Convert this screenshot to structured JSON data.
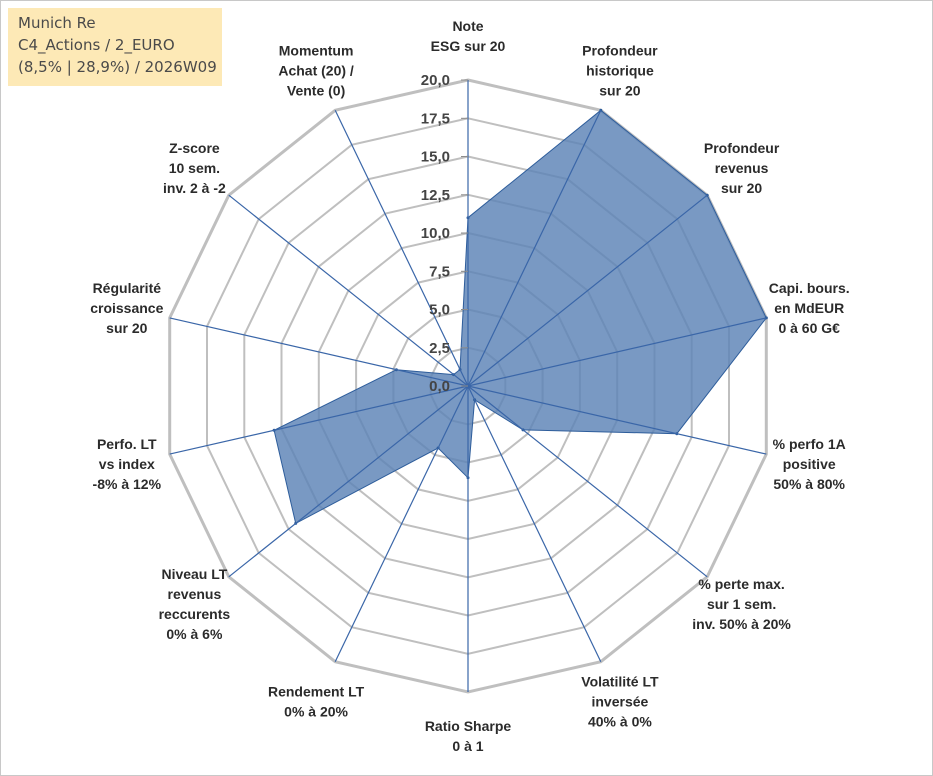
{
  "title_box": {
    "line1": "Munich Re",
    "line2": "C4_Actions / 2_EURO",
    "line3": "(8,5% | 28,9%) / 2026W09"
  },
  "chart_data": {
    "type": "radar",
    "r_range": [
      0,
      20
    ],
    "ticks": [
      "0,0",
      "2,5",
      "5,0",
      "7,5",
      "10,0",
      "12,5",
      "15,0",
      "17,5",
      "20,0"
    ],
    "grid": true,
    "legend": "none",
    "colors": {
      "fill": "#5b82b6",
      "stroke": "#2e5d9b",
      "grid": "#bfbfbf",
      "spoke": "#3a66a8"
    },
    "axes": [
      {
        "lines": [
          "Note",
          "ESG sur 20"
        ],
        "value": 11
      },
      {
        "lines": [
          "Profondeur",
          "historique",
          "sur 20"
        ],
        "value": 20
      },
      {
        "lines": [
          "Profondeur",
          "revenus",
          "sur 20"
        ],
        "value": 20
      },
      {
        "lines": [
          "Capi. bours.",
          "en MdEUR",
          "0 à 60 G€"
        ],
        "value": 20
      },
      {
        "lines": [
          "% perfo 1A",
          "positive",
          "50% à 80%"
        ],
        "value": 14
      },
      {
        "lines": [
          "% perte max.",
          "sur 1 sem.",
          "inv. 50% à 20%"
        ],
        "value": 4.6
      },
      {
        "lines": [
          "Volatilité LT",
          "inversée",
          "40% à 0%"
        ],
        "value": 1
      },
      {
        "lines": [
          "Ratio Sharpe",
          "0 à 1"
        ],
        "value": 6
      },
      {
        "lines": [
          "Rendement LT",
          "0% à 20%"
        ],
        "value": 4.5
      },
      {
        "lines": [
          "Niveau LT",
          "revenus",
          "reccurents",
          "0% à 6%"
        ],
        "value": 14.4
      },
      {
        "lines": [
          "Perfo. LT",
          "vs index",
          "-8% à 12%"
        ],
        "value": 13
      },
      {
        "lines": [
          "Régularité",
          "croissance",
          "sur 20"
        ],
        "value": 4.8
      },
      {
        "lines": [
          "Z-score",
          "10 sem.",
          "inv. 2 à -2"
        ],
        "value": 1.2
      },
      {
        "lines": [
          "Momentum",
          "Achat (20) /",
          "Vente (0)"
        ],
        "value": 1.2
      }
    ]
  }
}
